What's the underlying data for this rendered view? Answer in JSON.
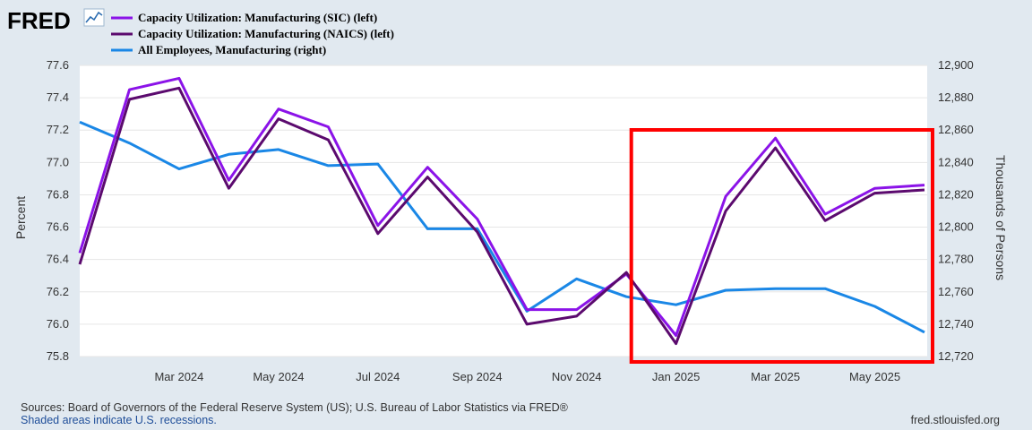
{
  "brand": {
    "logo_text": "FRED"
  },
  "chart_data": {
    "type": "line",
    "x": [
      "2024-01",
      "2024-02",
      "2024-03",
      "2024-04",
      "2024-05",
      "2024-06",
      "2024-07",
      "2024-08",
      "2024-09",
      "2024-10",
      "2024-11",
      "2024-12",
      "2025-01",
      "2025-02",
      "2025-03",
      "2025-04",
      "2025-05",
      "2025-06"
    ],
    "series": [
      {
        "name": "Capacity Utilization: Manufacturing (SIC) (left)",
        "axis": "left",
        "color": "#8b13e8",
        "values": [
          76.44,
          77.45,
          77.52,
          76.89,
          77.33,
          77.22,
          76.61,
          76.97,
          76.65,
          76.09,
          76.09,
          76.31,
          75.93,
          76.79,
          77.15,
          76.68,
          76.84,
          76.86
        ]
      },
      {
        "name": "Capacity Utilization: Manufacturing (NAICS) (left)",
        "axis": "left",
        "color": "#5b0a6e",
        "values": [
          76.37,
          77.39,
          77.46,
          76.84,
          77.27,
          77.14,
          76.56,
          76.91,
          76.57,
          76.0,
          76.05,
          76.32,
          75.88,
          76.7,
          77.09,
          76.64,
          76.81,
          76.83
        ]
      },
      {
        "name": "All Employees, Manufacturing (right)",
        "axis": "right",
        "color": "#1a87e6",
        "values": [
          12865,
          12852,
          12836,
          12845,
          12848,
          12838,
          12839,
          12799,
          12799,
          12748,
          12768,
          12757,
          12752,
          12761,
          12762,
          12762,
          12751,
          12735
        ]
      }
    ],
    "x_tick_labels": [
      "Mar 2024",
      "May 2024",
      "Jul 2024",
      "Sep 2024",
      "Nov 2024",
      "Jan 2025",
      "Mar 2025",
      "May 2025"
    ],
    "left_axis": {
      "title": "Percent",
      "range": [
        75.8,
        77.6
      ],
      "tick_labels": [
        "77.6",
        "77.4",
        "77.2",
        "77.0",
        "76.8",
        "76.6",
        "76.4",
        "76.2",
        "76.0",
        "75.8"
      ]
    },
    "right_axis": {
      "title": "Thousands of Persons",
      "range": [
        12720,
        12900
      ],
      "tick_labels": [
        "12,900",
        "12,880",
        "12,860",
        "12,840",
        "12,820",
        "12,800",
        "12,780",
        "12,760",
        "12,740",
        "12,720"
      ]
    },
    "highlight": {
      "from": "2024-12",
      "to": "2025-06",
      "color": "#ff0000"
    },
    "legend": [
      "Capacity Utilization: Manufacturing (SIC) (left)",
      "Capacity Utilization: Manufacturing (NAICS) (left)",
      "All Employees, Manufacturing (right)"
    ]
  },
  "footer": {
    "sources": "Sources: Board of Governors of the Federal Reserve System (US); U.S. Bureau of Labor Statistics via FRED®",
    "shaded_note": "Shaded areas indicate U.S. recessions.",
    "site": "fred.stlouisfed.org"
  }
}
